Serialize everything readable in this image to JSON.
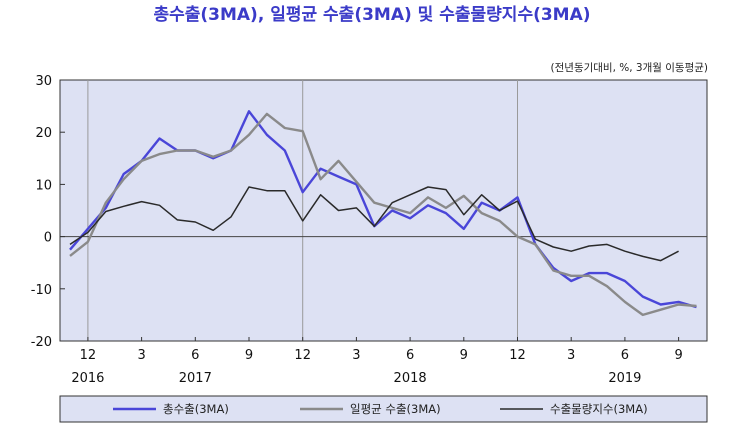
{
  "chart_data": {
    "type": "line",
    "title": "총수출(3MA), 일평균 수출(3MA) 및 수출물량지수(3MA)",
    "unit_note": "(전년동기대비,  %,  3개월 이동평균)",
    "ylim": [
      -20,
      30
    ],
    "yticks": [
      30,
      20,
      10,
      0,
      -10,
      -20
    ],
    "x_months": [
      "2016-11",
      "2016-12",
      "2017-01",
      "2017-02",
      "2017-03",
      "2017-04",
      "2017-05",
      "2017-06",
      "2017-07",
      "2017-08",
      "2017-09",
      "2017-10",
      "2017-11",
      "2017-12",
      "2018-01",
      "2018-02",
      "2018-03",
      "2018-04",
      "2018-05",
      "2018-06",
      "2018-07",
      "2018-08",
      "2018-09",
      "2018-10",
      "2018-11",
      "2018-12",
      "2019-01",
      "2019-02",
      "2019-03",
      "2019-04",
      "2019-05",
      "2019-06",
      "2019-07",
      "2019-08",
      "2019-09",
      "2019-10"
    ],
    "x_tick_labels": [
      {
        "month": "2016-12",
        "label": "12"
      },
      {
        "month": "2017-03",
        "label": "3"
      },
      {
        "month": "2017-06",
        "label": "6"
      },
      {
        "month": "2017-09",
        "label": "9"
      },
      {
        "month": "2017-12",
        "label": "12"
      },
      {
        "month": "2018-03",
        "label": "3"
      },
      {
        "month": "2018-06",
        "label": "6"
      },
      {
        "month": "2018-09",
        "label": "9"
      },
      {
        "month": "2018-12",
        "label": "12"
      },
      {
        "month": "2019-03",
        "label": "3"
      },
      {
        "month": "2019-06",
        "label": "6"
      },
      {
        "month": "2019-09",
        "label": "9"
      }
    ],
    "year_labels": [
      {
        "month": "2016-12",
        "label": "2016"
      },
      {
        "month": "2017-06",
        "label": "2017"
      },
      {
        "month": "2018-06",
        "label": "2018"
      },
      {
        "month": "2019-06",
        "label": "2019"
      }
    ],
    "year_dividers": [
      "2016-12",
      "2017-12",
      "2018-12"
    ],
    "grid": false,
    "legend_position": "bottom",
    "series": [
      {
        "name": "총수출(3MA)",
        "color": "#4a46d8",
        "values": [
          -2.5,
          1.5,
          5.5,
          12.0,
          14.5,
          18.8,
          16.5,
          16.5,
          15.0,
          16.5,
          24.0,
          19.5,
          16.5,
          8.5,
          13.0,
          11.5,
          10.0,
          2.0,
          5.0,
          3.5,
          6.0,
          4.5,
          1.5,
          6.5,
          5.0,
          7.5,
          -1.5,
          -6.0,
          -8.5,
          -7.0,
          -7.0,
          -8.5,
          -11.5,
          -13.0,
          -12.5,
          -13.5
        ]
      },
      {
        "name": "일평균 수출(3MA)",
        "color": "#8a8a8a",
        "values": [
          -3.7,
          -1.0,
          6.5,
          11.0,
          14.5,
          15.8,
          16.5,
          16.5,
          15.3,
          16.5,
          19.5,
          23.5,
          20.8,
          20.2,
          11.0,
          14.5,
          10.5,
          6.5,
          5.5,
          4.5,
          7.5,
          5.5,
          7.8,
          4.5,
          3.0,
          0.0,
          -1.5,
          -6.5,
          -7.5,
          -7.5,
          -9.5,
          -12.5,
          -15.0,
          -14.0,
          -13.0,
          -13.3
        ]
      },
      {
        "name": "수출물량지수(3MA)",
        "color": "#2a2a2a",
        "values": [
          -1.5,
          0.8,
          4.8,
          5.8,
          6.7,
          6.0,
          3.2,
          2.8,
          1.2,
          3.8,
          9.5,
          8.8,
          8.8,
          3.0,
          8.0,
          5.0,
          5.5,
          2.0,
          6.5,
          8.0,
          9.5,
          9.0,
          4.2,
          8.0,
          5.0,
          6.8,
          -0.5,
          -2.0,
          -2.8,
          -1.8,
          -1.5,
          -2.8,
          -3.8,
          -4.6,
          -2.8
        ]
      }
    ]
  }
}
